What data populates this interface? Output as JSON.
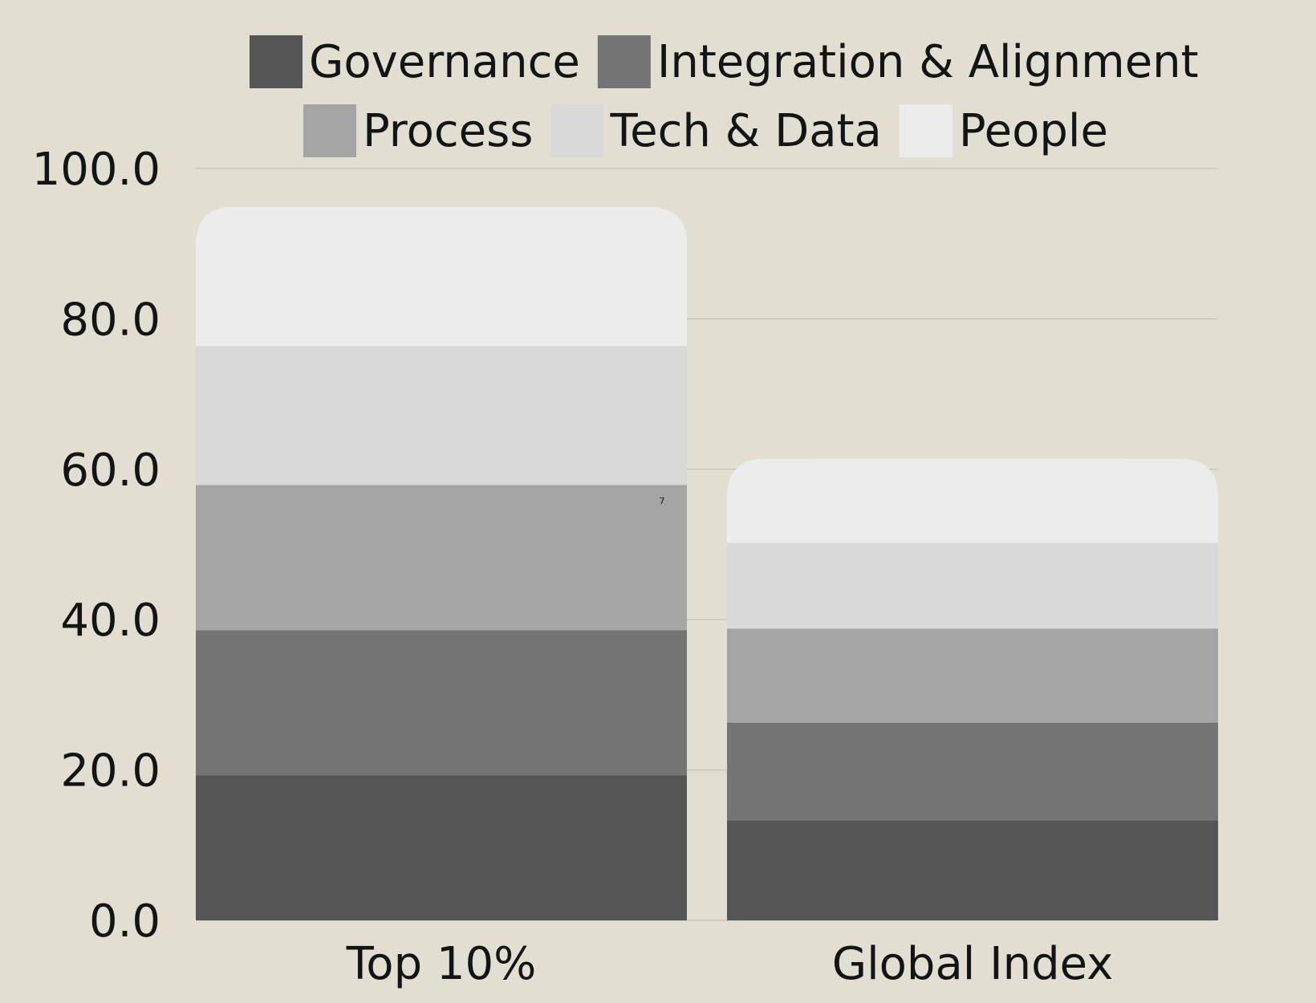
{
  "chart_data": {
    "type": "bar",
    "stacked": true,
    "categories": [
      "Top 10%",
      "Global Index"
    ],
    "series": [
      {
        "name": "Governance",
        "values": [
          19.3,
          13.3
        ],
        "color": "#555555"
      },
      {
        "name": "Integration & Alignment",
        "values": [
          19.3,
          13.0
        ],
        "color": "#747474"
      },
      {
        "name": "Process",
        "values": [
          19.3,
          12.5
        ],
        "color": "#a5a5a5"
      },
      {
        "name": "Tech & Data",
        "values": [
          18.5,
          11.4
        ],
        "color": "#d9d9d9"
      },
      {
        "name": "People",
        "values": [
          18.5,
          11.2
        ],
        "color": "#ececec"
      }
    ],
    "ylim": [
      0,
      100
    ],
    "yticks": [
      "0.0",
      "20.0",
      "40.0",
      "60.0",
      "80.0",
      "100.0"
    ],
    "grid": true,
    "legend_position": "top",
    "annotation": "7"
  }
}
